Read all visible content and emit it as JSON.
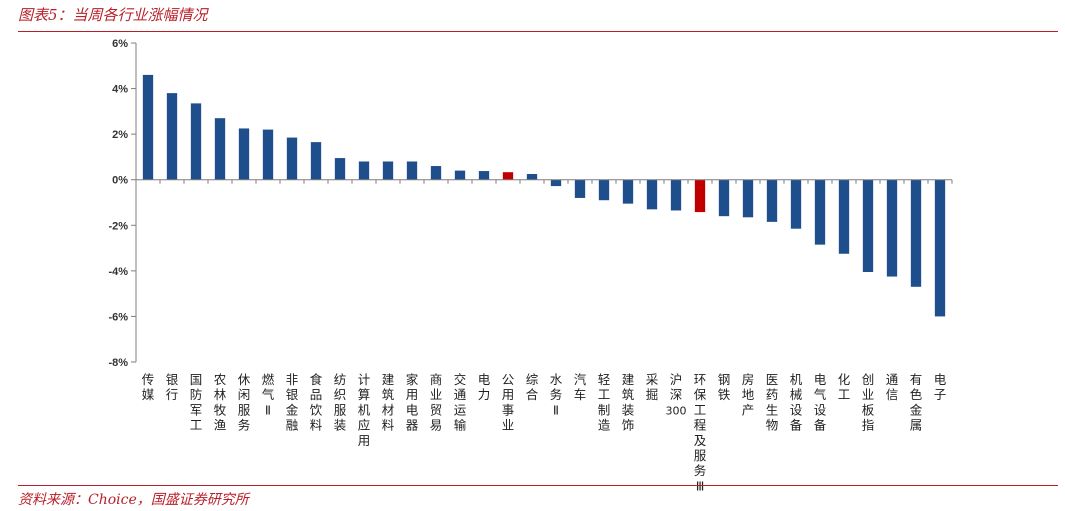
{
  "caption": "图表5：当周各行业涨幅情况",
  "source": "资料来源：Choice，国盛证券研究所",
  "chart_data": {
    "type": "bar",
    "title": "",
    "xlabel": "",
    "ylabel": "",
    "ylim": [
      -8,
      6
    ],
    "yticks": [
      6,
      4,
      2,
      0,
      -2,
      -4,
      -6,
      -8
    ],
    "ytick_labels": [
      "6%",
      "4%",
      "2%",
      "0%",
      "-2%",
      "-4%",
      "-6%",
      "-8%"
    ],
    "categories": [
      "传媒",
      "银行",
      "国防军工",
      "农林牧渔",
      "休闲服务",
      "燃气Ⅱ",
      "非银金融",
      "食品饮料",
      "纺织服装",
      "计算机应用",
      "建筑材料",
      "家用电器",
      "商业贸易",
      "交通运输",
      "电力",
      "公用事业",
      "综合",
      "水务Ⅱ",
      "汽车",
      "轻工制造",
      "建筑装饰",
      "采掘",
      "沪深300",
      "环保工程及服务Ⅲ",
      "钢铁",
      "房地产",
      "医药生物",
      "机械设备",
      "电气设备",
      "化工",
      "创业板指",
      "通信",
      "有色金属",
      "电子"
    ],
    "values": [
      4.6,
      3.8,
      3.35,
      2.7,
      2.25,
      2.2,
      1.85,
      1.65,
      0.95,
      0.8,
      0.8,
      0.8,
      0.6,
      0.4,
      0.38,
      0.33,
      0.25,
      -0.28,
      -0.8,
      -0.9,
      -1.05,
      -1.3,
      -1.35,
      -1.42,
      -1.6,
      -1.65,
      -1.85,
      -2.15,
      -2.85,
      -3.25,
      -4.05,
      -4.25,
      -4.7,
      -6.0
    ],
    "highlighted": [
      "公用事业",
      "环保工程及服务Ⅲ"
    ],
    "colors": {
      "bar": "#1f4e8c",
      "highlight": "#c00000",
      "axis": "#7f7f7f"
    },
    "grid": false,
    "legend": "none"
  }
}
